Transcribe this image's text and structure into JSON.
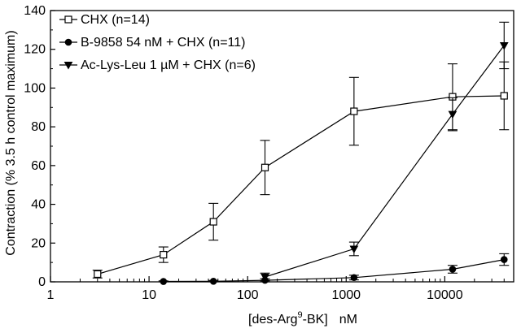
{
  "chart_data": {
    "type": "line",
    "title": "",
    "xlabel_parts": {
      "pre": "[des-Arg",
      "sup": "9",
      "post": "-BK]",
      "unit": "nM"
    },
    "ylabel": "Contraction (% 3.5 h control maximum)",
    "x_scale": "log",
    "xlim": [
      1,
      50000
    ],
    "ylim": [
      0,
      140
    ],
    "x_ticks": [
      1,
      10,
      100,
      1000,
      10000
    ],
    "x_tick_labels": [
      "1",
      "10",
      "100",
      "1000",
      "10000"
    ],
    "y_ticks": [
      0,
      20,
      40,
      60,
      80,
      100,
      120,
      140
    ],
    "y_tick_labels": [
      "0",
      "20",
      "40",
      "60",
      "80",
      "100",
      "120",
      "140"
    ],
    "grid": false,
    "legend_position": "top-left",
    "series": [
      {
        "name": "CHX (n=14)",
        "marker": "open-square",
        "x": [
          3,
          14,
          45,
          150,
          1200,
          12000,
          40000
        ],
        "y": [
          4,
          14,
          31,
          59,
          88,
          95.5,
          96
        ],
        "err": [
          2,
          4,
          9.5,
          14,
          17.5,
          17,
          17.5
        ]
      },
      {
        "name": "B-9858 54 nM + CHX (n=11)",
        "marker": "filled-circle",
        "x": [
          14,
          45,
          150,
          1200,
          12000,
          40000
        ],
        "y": [
          0.2,
          0.3,
          0.8,
          2.2,
          6.5,
          11.5
        ],
        "err": [
          0.3,
          0.4,
          0.8,
          1.2,
          2,
          3
        ]
      },
      {
        "name": "Ac-Lys-Leu 1 µM + CHX (n=6)",
        "marker": "filled-triangle-down",
        "x": [
          150,
          1200,
          12000,
          40000
        ],
        "y": [
          2.5,
          17,
          86.5,
          122
        ],
        "err": [
          2,
          3.5,
          8.5,
          12
        ]
      }
    ]
  }
}
